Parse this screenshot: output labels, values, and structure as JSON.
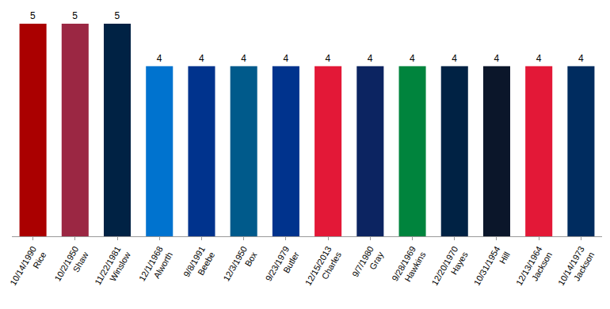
{
  "chart_data": {
    "type": "bar",
    "categories": [
      "10/14/1990 Rice",
      "10/2/1950 Shaw",
      "11/22/1981 Winslow",
      "12/1/1968 Alworth",
      "9/8/1991 Beebe",
      "12/3/1950 Box",
      "9/23/1979 Butler",
      "12/15/2013 Charles",
      "9/7/1980 Gray",
      "9/28/1969 Hawkins",
      "12/20/1970 Hayes",
      "10/31/1954 Hill",
      "12/13/1964 Jackson",
      "10/14/1973 Jackson"
    ],
    "values": [
      5,
      5,
      5,
      4,
      4,
      4,
      4,
      4,
      4,
      4,
      4,
      4,
      4,
      4
    ],
    "colors": [
      "#aa0000",
      "#9b2743",
      "#002244",
      "#0073cf",
      "#00338d",
      "#005a8b",
      "#00338d",
      "#e31837",
      "#0c2461",
      "#00843d",
      "#002244",
      "#0b162a",
      "#e31837",
      "#002c5f"
    ],
    "ylim": [
      0,
      5
    ],
    "data_labels": true,
    "tick_labels": "x",
    "grid": false
  }
}
